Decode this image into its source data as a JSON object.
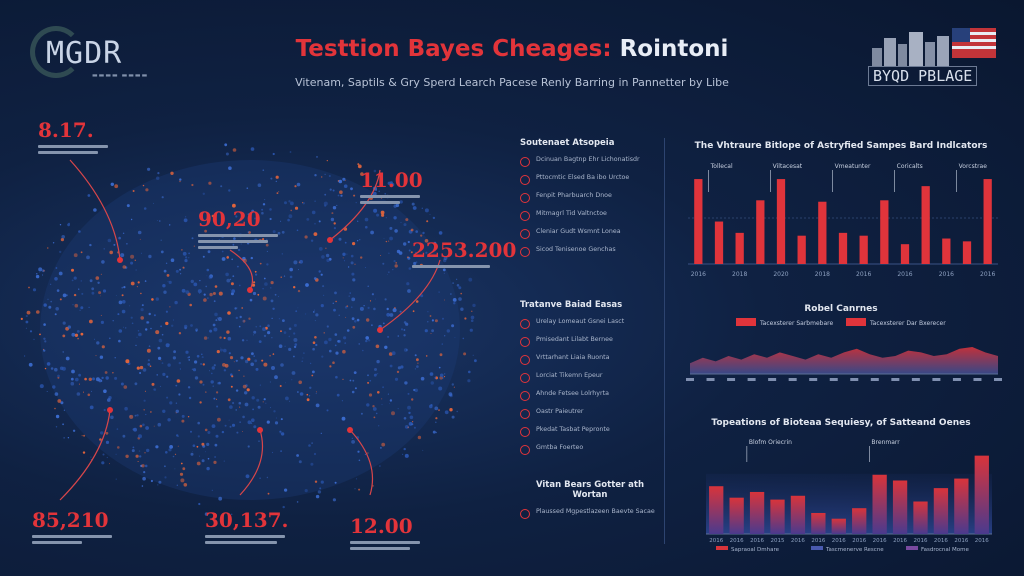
{
  "header": {
    "logo_text": "MGDR",
    "title_red": "Testtion Bayes Cheages:",
    "title_white": "Rointoni",
    "subtitle": "Vitenam, Saptils & Gry Sperd Learch Pacese Renly Barring in Pannetter by Libe",
    "brand_name": "BYQD PBLAGE"
  },
  "map": {
    "callouts": [
      {
        "value": "8.17."
      },
      {
        "value": "90,20"
      },
      {
        "value": "11.00"
      },
      {
        "value": "2253.200"
      },
      {
        "value": "85,210"
      },
      {
        "value": "30,137."
      },
      {
        "value": "12.00"
      }
    ]
  },
  "middle": {
    "sections": [
      {
        "title": "Soutenaet Atsopeia",
        "items": [
          "Dcinuan Bagtnp Ehr Lichonatisdr",
          "Pttocmtic Elsed Ba ibo Urctoe",
          "Fenpit Pharbuarch Dnoe",
          "Mitmagrl Tid Valtnctoe",
          "Cleniar Gudt Wsmnt Lonea",
          "Sicod Tenisenoe Genchas"
        ]
      },
      {
        "title": "Tratanve Baiad Easas",
        "items": [
          "Urelay Lomeaut Gsnei Lasct",
          "Pmisedant Lilabt Bernee",
          "Vrttarhant Liaia Ruonta",
          "Lorciat Tikemn Epeur",
          "Ahnde Fetsee Lolrhyrta",
          "Oastr Paieutrer",
          "Pkedat Tasbat Pepronte",
          "Gmtba Foerteo"
        ]
      }
    ],
    "footer_title": "Vitan Bears Gotter ath Wortan",
    "footer_item": "Plaussed Mgpestlazeen Baevte Sacae"
  },
  "chart_data": [
    {
      "type": "bar",
      "title": "The Vhtraure Bitlope of Astryfied Sampes Bard Indlcators",
      "categories": [
        "2016",
        "2016",
        "2018",
        "2016",
        "2020",
        "2016",
        "2018",
        "2016",
        "2016",
        "2016",
        "2016",
        "2016",
        "2016",
        "2016",
        "2016"
      ],
      "values": [
        60,
        30,
        22,
        45,
        60,
        20,
        44,
        22,
        20,
        45,
        14,
        55,
        18,
        16,
        60
      ],
      "ylim": [
        0,
        65
      ],
      "annotations": [
        "Tollecal",
        "Viltacesat",
        "Vmeatunter",
        "Coricalts",
        "Vorcstrae"
      ],
      "color": "#e0343b"
    },
    {
      "type": "area",
      "title": "Robel Canrnes",
      "legend": [
        "Tacexsterer Sarbmebare",
        "Tacexsterer Dar Bxerecer"
      ],
      "legend_placement": "top",
      "values": [
        6,
        9,
        7,
        10,
        8,
        11,
        9,
        12,
        10,
        8,
        11,
        9,
        12,
        14,
        11,
        9,
        10,
        13,
        12,
        10,
        11,
        14,
        15,
        12,
        10
      ],
      "ylim": [
        0,
        20
      ],
      "colors": [
        "#e0343b",
        "#3f4f94"
      ]
    },
    {
      "type": "bar",
      "title": "Topeations of Bioteaa Sequiesy, of Satteand Oenes",
      "categories": [
        "2016",
        "2016",
        "2016",
        "2015",
        "2016",
        "2016",
        "2016",
        "2016",
        "2016",
        "2016",
        "2016",
        "2016",
        "2016",
        "2016"
      ],
      "values": [
        50,
        38,
        44,
        36,
        40,
        22,
        16,
        27,
        62,
        56,
        34,
        48,
        58,
        82
      ],
      "ylim": [
        0,
        90
      ],
      "annotations": [
        "Blofm Oriecrin",
        "Brenmarr"
      ],
      "legend": [
        "Sapraoal Dmhare",
        "Tascmenerve Rescne",
        "Fasdrocnal Mome"
      ],
      "color": "#c8333b"
    }
  ]
}
